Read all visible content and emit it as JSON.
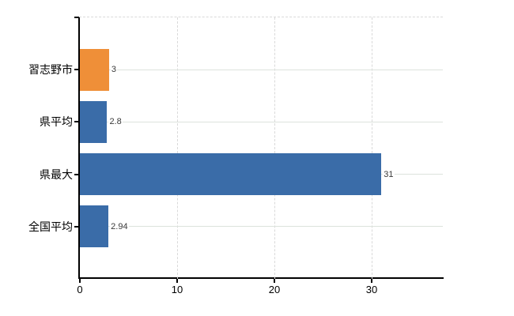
{
  "chart_data": {
    "type": "bar",
    "orientation": "horizontal",
    "title": "",
    "xlabel": "",
    "ylabel": "",
    "categories": [
      "習志野市",
      "県平均",
      "県最大",
      "全国平均"
    ],
    "values": [
      3,
      2.8,
      31,
      2.94
    ],
    "value_labels": [
      "3",
      "2.8",
      "31",
      "2.94"
    ],
    "bar_colors": [
      "#ef8f38",
      "#3a6ca8",
      "#3a6ca8",
      "#3a6ca8"
    ],
    "x_ticks": [
      0,
      10,
      20,
      30
    ],
    "x_tick_labels": [
      "0",
      "10",
      "20",
      "30"
    ],
    "xlim": [
      0,
      37.3
    ],
    "grid": {
      "horizontal": true,
      "vertical": true
    },
    "legend_position": "none"
  },
  "colors": {
    "highlight_bar": "#ef8f38",
    "default_bar": "#3a6ca8",
    "axis_line": "#000000",
    "h_gridline": "#dce3dc",
    "v_gridline": "#d9d9d9",
    "category_text": "#000000",
    "value_text": "#3a3a3a",
    "background": "#ffffff"
  }
}
